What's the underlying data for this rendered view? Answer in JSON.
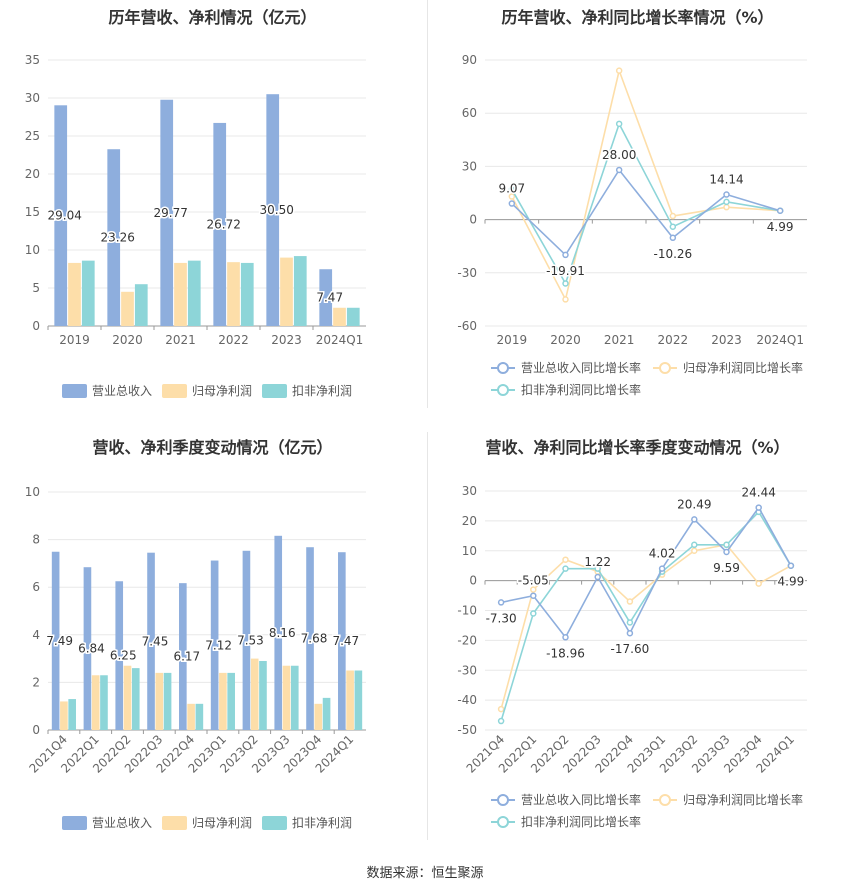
{
  "source_label": "数据来源：恒生聚源",
  "chart_data": [
    {
      "type": "bar",
      "title": "历年营收、净利情况（亿元）",
      "categories": [
        "2019",
        "2020",
        "2021",
        "2022",
        "2023",
        "2024Q1"
      ],
      "ylim": [
        0,
        35
      ],
      "yticks": [
        0,
        5,
        10,
        15,
        20,
        25,
        30,
        35
      ],
      "grid": true,
      "legend_position": "bottom",
      "series": [
        {
          "name": "营业总收入",
          "color": "#8eaedd",
          "values": [
            29.04,
            23.26,
            29.77,
            26.72,
            30.5,
            7.47
          ],
          "labels": [
            "29.04",
            "23.26",
            "29.77",
            "26.72",
            "30.50",
            "7.47"
          ]
        },
        {
          "name": "归母净利润",
          "color": "#fddea9",
          "values": [
            8.3,
            4.5,
            8.3,
            8.4,
            9.0,
            2.4
          ]
        },
        {
          "name": "扣非净利润",
          "color": "#8dd5d8",
          "values": [
            8.6,
            5.5,
            8.6,
            8.3,
            9.2,
            2.4
          ]
        }
      ]
    },
    {
      "type": "line",
      "title": "历年营收、净利同比增长率情况（%）",
      "categories": [
        "2019",
        "2020",
        "2021",
        "2022",
        "2023",
        "2024Q1"
      ],
      "ylim": [
        -60,
        90
      ],
      "yticks": [
        -60,
        -30,
        0,
        30,
        60,
        90
      ],
      "grid": true,
      "legend_position": "bottom",
      "series": [
        {
          "name": "营业总收入同比增长率",
          "color": "#8eaedd",
          "values": [
            9.07,
            -19.91,
            28.0,
            -10.26,
            14.14,
            4.99
          ],
          "labels": [
            "9.07",
            "-19.91",
            "28.00",
            "-10.26",
            "14.14",
            "4.99"
          ]
        },
        {
          "name": "归母净利润同比增长率",
          "color": "#fddea9",
          "values": [
            13,
            -45,
            84,
            2,
            7,
            5
          ]
        },
        {
          "name": "扣非净利润同比增长率",
          "color": "#8dd5d8",
          "values": [
            17,
            -36,
            54,
            -4,
            10,
            5
          ]
        }
      ]
    },
    {
      "type": "bar",
      "title": "营收、净利季度变动情况（亿元）",
      "categories": [
        "2021Q4",
        "2022Q1",
        "2022Q2",
        "2022Q3",
        "2022Q4",
        "2023Q1",
        "2023Q2",
        "2023Q3",
        "2023Q4",
        "2024Q1"
      ],
      "ylim": [
        0,
        10
      ],
      "yticks": [
        0,
        2,
        4,
        6,
        8,
        10
      ],
      "grid": true,
      "legend_position": "bottom",
      "series": [
        {
          "name": "营业总收入",
          "color": "#8eaedd",
          "values": [
            7.49,
            6.84,
            6.25,
            7.45,
            6.17,
            7.12,
            7.53,
            8.16,
            7.68,
            7.47
          ],
          "labels": [
            "7.49",
            "6.84",
            "6.25",
            "7.45",
            "6.17",
            "7.12",
            "7.53",
            "8.16",
            "7.68",
            "7.47"
          ]
        },
        {
          "name": "归母净利润",
          "color": "#fddea9",
          "values": [
            1.2,
            2.3,
            2.7,
            2.4,
            1.1,
            2.4,
            3.0,
            2.7,
            1.1,
            2.5
          ]
        },
        {
          "name": "扣非净利润",
          "color": "#8dd5d8",
          "values": [
            1.3,
            2.3,
            2.6,
            2.4,
            1.1,
            2.4,
            2.9,
            2.7,
            1.35,
            2.5
          ]
        }
      ]
    },
    {
      "type": "line",
      "title": "营收、净利同比增长率季度变动情况（%）",
      "categories": [
        "2021Q4",
        "2022Q1",
        "2022Q2",
        "2022Q3",
        "2022Q4",
        "2023Q1",
        "2023Q2",
        "2023Q3",
        "2023Q4",
        "2024Q1"
      ],
      "ylim": [
        -50,
        30
      ],
      "yticks": [
        -50,
        -40,
        -30,
        -20,
        -10,
        0,
        10,
        20,
        30
      ],
      "grid": true,
      "legend_position": "bottom",
      "series": [
        {
          "name": "营业总收入同比增长率",
          "color": "#8eaedd",
          "values": [
            -7.3,
            -5.05,
            -18.96,
            1.22,
            -17.6,
            4.02,
            20.49,
            9.59,
            24.44,
            4.99
          ],
          "labels": [
            "-7.30",
            "-5.05",
            "-18.96",
            "1.22",
            "-17.60",
            "4.02",
            "20.49",
            "9.59",
            "24.44",
            "4.99"
          ]
        },
        {
          "name": "归母净利润同比增长率",
          "color": "#fddea9",
          "values": [
            -43,
            -3,
            7,
            3,
            -7,
            2,
            10,
            12,
            -1,
            5
          ]
        },
        {
          "name": "扣非净利润同比增长率",
          "color": "#8dd5d8",
          "values": [
            -47,
            -11,
            4,
            4,
            -14,
            3,
            12,
            12,
            23,
            5
          ]
        }
      ]
    }
  ]
}
